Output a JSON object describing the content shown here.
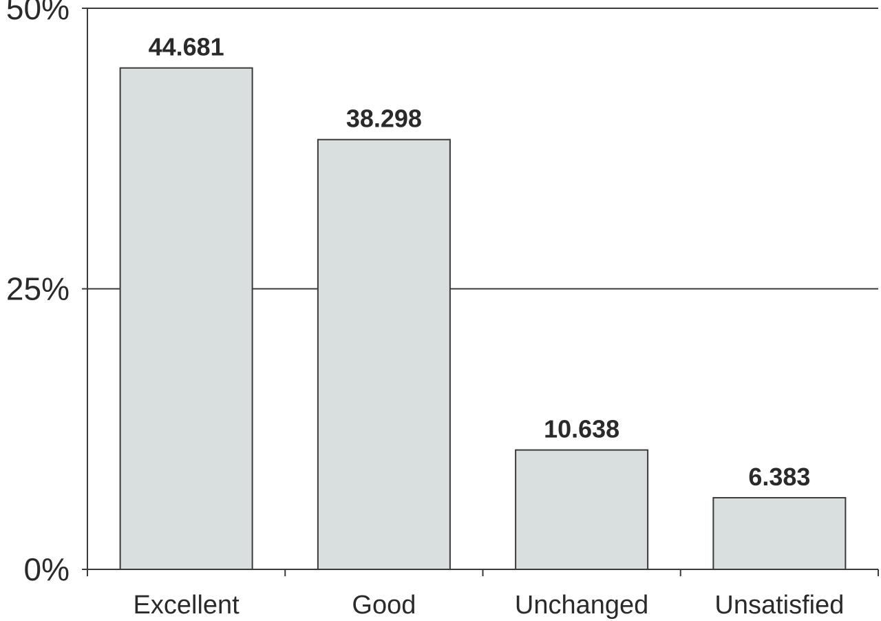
{
  "chart_data": {
    "type": "bar",
    "categories": [
      "Excellent",
      "Good",
      "Unchanged",
      "Unsatisfied"
    ],
    "values": [
      44.681,
      38.298,
      10.638,
      6.383
    ],
    "value_labels": [
      "44.681",
      "38.298",
      "10.638",
      "6.383"
    ],
    "yticks": [
      {
        "value": 0,
        "label": "0%"
      },
      {
        "value": 25,
        "label": "25%"
      },
      {
        "value": 50,
        "label": "50%"
      }
    ],
    "ylim": [
      0,
      50
    ],
    "title": "",
    "xlabel": "",
    "ylabel": "",
    "grid": true,
    "legend": "none",
    "colors": {
      "bar_fill": "#d9dfdf",
      "bar_stroke": "#3a3a3a",
      "axis": "#3a3a3a",
      "text": "#2a2a2a"
    }
  }
}
